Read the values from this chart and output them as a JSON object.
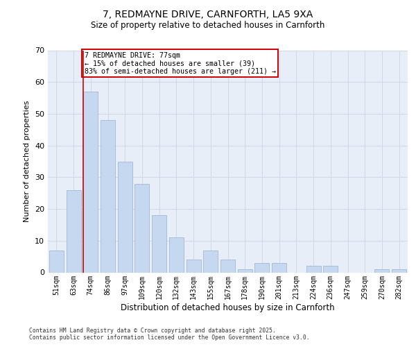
{
  "title": "7, REDMAYNE DRIVE, CARNFORTH, LA5 9XA",
  "subtitle": "Size of property relative to detached houses in Carnforth",
  "xlabel": "Distribution of detached houses by size in Carnforth",
  "ylabel": "Number of detached properties",
  "categories": [
    "51sqm",
    "63sqm",
    "74sqm",
    "86sqm",
    "97sqm",
    "109sqm",
    "120sqm",
    "132sqm",
    "143sqm",
    "155sqm",
    "167sqm",
    "178sqm",
    "190sqm",
    "201sqm",
    "213sqm",
    "224sqm",
    "236sqm",
    "247sqm",
    "259sqm",
    "270sqm",
    "282sqm"
  ],
  "values": [
    7,
    26,
    57,
    48,
    35,
    28,
    18,
    11,
    4,
    7,
    4,
    1,
    3,
    3,
    0,
    2,
    2,
    0,
    0,
    1,
    1
  ],
  "bar_color": "#c5d8f0",
  "bar_edge_color": "#a0b8d8",
  "redline_index": 2,
  "annotation_text": "7 REDMAYNE DRIVE: 77sqm\n← 15% of detached houses are smaller (39)\n83% of semi-detached houses are larger (211) →",
  "annotation_box_color": "#ffffff",
  "annotation_box_edge": "#cc0000",
  "redline_color": "#cc0000",
  "grid_color": "#d0d8e8",
  "bg_color": "#e8eef8",
  "ylim": [
    0,
    70
  ],
  "yticks": [
    0,
    10,
    20,
    30,
    40,
    50,
    60,
    70
  ],
  "footer1": "Contains HM Land Registry data © Crown copyright and database right 2025.",
  "footer2": "Contains public sector information licensed under the Open Government Licence v3.0."
}
